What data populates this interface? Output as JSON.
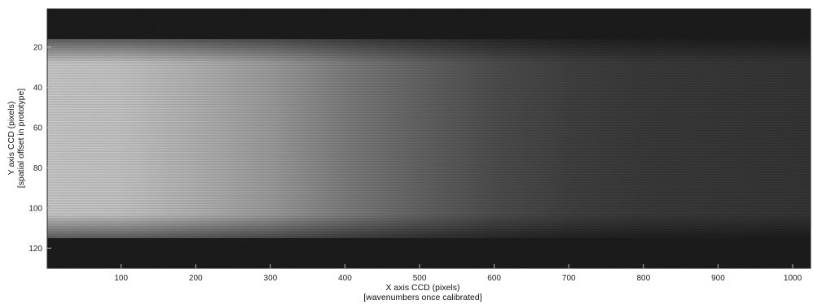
{
  "chart_data": {
    "type": "heatmap",
    "title": "",
    "xlabel": "X  axis CCD (pixels)",
    "xlabel_sub": "[wavenumbers once calibrated]",
    "ylabel": "Y axis CCD (pixels)",
    "ylabel_sub": "[spatial offset in prototype]",
    "xlim": [
      1,
      1024
    ],
    "ylim": [
      1,
      130
    ],
    "y_reversed": true,
    "colormap": "gray",
    "x_ticks": [
      100,
      200,
      300,
      400,
      500,
      600,
      700,
      800,
      900,
      1000
    ],
    "y_ticks": [
      20,
      40,
      60,
      80,
      100,
      120
    ],
    "grid": false,
    "legend": "none",
    "illuminated_band_rows": [
      16,
      115
    ],
    "intensity_profile_x": [
      1,
      100,
      200,
      300,
      400,
      500,
      600,
      700,
      800,
      900,
      1024
    ],
    "intensity_profile": [
      0.78,
      0.76,
      0.68,
      0.58,
      0.44,
      0.32,
      0.22,
      0.16,
      0.13,
      0.12,
      0.11
    ],
    "colors": {
      "background_dark": "#141414",
      "band_bright": "#c8c8c8"
    }
  }
}
